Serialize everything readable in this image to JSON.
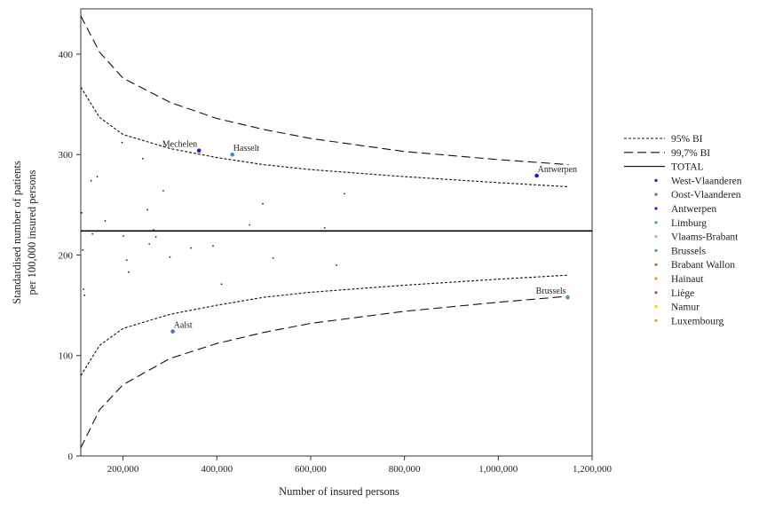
{
  "chart_data": {
    "type": "scatter",
    "xlabel": "Number of insured persons",
    "ylabel_lines": [
      "Standardised number of patients",
      "per 100,000 insured persons"
    ],
    "xlim": [
      110000,
      1200000
    ],
    "ylim": [
      0,
      445
    ],
    "x_ticks": [
      {
        "value": 200000,
        "label": "200,000"
      },
      {
        "value": 400000,
        "label": "400,000"
      },
      {
        "value": 600000,
        "label": "600,000"
      },
      {
        "value": 800000,
        "label": "800,000"
      },
      {
        "value": 1000000,
        "label": "1,000,000"
      },
      {
        "value": 1200000,
        "label": "1,200,000"
      }
    ],
    "y_ticks": [
      {
        "value": 0,
        "label": "0"
      },
      {
        "value": 100,
        "label": "100"
      },
      {
        "value": 200,
        "label": "200"
      },
      {
        "value": 300,
        "label": "300"
      },
      {
        "value": 400,
        "label": "400"
      }
    ],
    "total_line": 224,
    "legend": {
      "position": "right",
      "lines": [
        {
          "label": "95% BI",
          "style": "dotted"
        },
        {
          "label": "99,7% BI",
          "style": "dashed"
        },
        {
          "label": "TOTAL",
          "style": "solid"
        }
      ],
      "provinces": [
        {
          "label": "West-Vlaanderen",
          "color": "#1c1c8c"
        },
        {
          "label": "Oost-Vlaanderen",
          "color": "#4a70c8"
        },
        {
          "label": "Antwerpen",
          "color": "#1a1ae6"
        },
        {
          "label": "Limburg",
          "color": "#2e96d8"
        },
        {
          "label": "Vlaams-Brabant",
          "color": "#7cc8e8"
        },
        {
          "label": "Brussels",
          "color": "#3cb44b"
        },
        {
          "label": "Brabant Wallon",
          "color": "#d2691e"
        },
        {
          "label": "Hainaut",
          "color": "#ff8c1a"
        },
        {
          "label": "Liège",
          "color": "#b5542c"
        },
        {
          "label": "Namur",
          "color": "#f5d000"
        },
        {
          "label": "Luxembourg",
          "color": "#e8a020"
        }
      ]
    },
    "ci_bands": {
      "upper_99_7": [
        [
          110000,
          438
        ],
        [
          150000,
          402
        ],
        [
          200000,
          376
        ],
        [
          300000,
          352
        ],
        [
          400000,
          336
        ],
        [
          500000,
          325
        ],
        [
          600000,
          316
        ],
        [
          800000,
          303
        ],
        [
          1000000,
          295
        ],
        [
          1150000,
          290
        ]
      ],
      "upper_95": [
        [
          110000,
          367
        ],
        [
          150000,
          337
        ],
        [
          200000,
          320
        ],
        [
          300000,
          306
        ],
        [
          400000,
          297
        ],
        [
          500000,
          290
        ],
        [
          600000,
          285
        ],
        [
          800000,
          278
        ],
        [
          1000000,
          272
        ],
        [
          1150000,
          268
        ]
      ],
      "lower_95": [
        [
          110000,
          80
        ],
        [
          150000,
          110
        ],
        [
          200000,
          127
        ],
        [
          300000,
          141
        ],
        [
          400000,
          150
        ],
        [
          500000,
          158
        ],
        [
          600000,
          163
        ],
        [
          800000,
          170
        ],
        [
          1000000,
          176
        ],
        [
          1150000,
          180
        ]
      ],
      "lower_99_7": [
        [
          110000,
          8
        ],
        [
          150000,
          46
        ],
        [
          200000,
          71
        ],
        [
          300000,
          97
        ],
        [
          400000,
          112
        ],
        [
          500000,
          123
        ],
        [
          600000,
          132
        ],
        [
          800000,
          144
        ],
        [
          1000000,
          153
        ],
        [
          1150000,
          159
        ]
      ]
    },
    "labelled_points": [
      {
        "name": "Mechelen",
        "x": 362000,
        "y": 304,
        "color": "#1a1ae6",
        "label_pos": "left"
      },
      {
        "name": "Hasselt",
        "x": 433000,
        "y": 300,
        "color": "#2e96d8",
        "label_pos": "right"
      },
      {
        "name": "Antwerpen",
        "x": 1082000,
        "y": 279,
        "color": "#1a1ae6",
        "label_pos": "right"
      },
      {
        "name": "Brussels",
        "x": 1148000,
        "y": 158,
        "color": "#3cb44b",
        "label_pos": "left"
      },
      {
        "name": "Aalst",
        "x": 306000,
        "y": 124,
        "color": "#4a70c8",
        "label_pos": "right"
      }
    ],
    "other_points": [
      [
        112000,
        242
      ],
      [
        114000,
        205
      ],
      [
        116000,
        166
      ],
      [
        118000,
        160
      ],
      [
        132000,
        274
      ],
      [
        135000,
        221
      ],
      [
        145000,
        278
      ],
      [
        162000,
        234
      ],
      [
        198000,
        312
      ],
      [
        201000,
        219
      ],
      [
        208000,
        195
      ],
      [
        212000,
        183
      ],
      [
        242000,
        296
      ],
      [
        252000,
        245
      ],
      [
        256000,
        211
      ],
      [
        265000,
        225
      ],
      [
        270000,
        218
      ],
      [
        286000,
        264
      ],
      [
        300000,
        198
      ],
      [
        345000,
        207
      ],
      [
        392000,
        209
      ],
      [
        410000,
        171
      ],
      [
        470000,
        230
      ],
      [
        498000,
        251
      ],
      [
        520000,
        197
      ],
      [
        630000,
        227
      ],
      [
        655000,
        190
      ],
      [
        672000,
        261
      ]
    ]
  }
}
